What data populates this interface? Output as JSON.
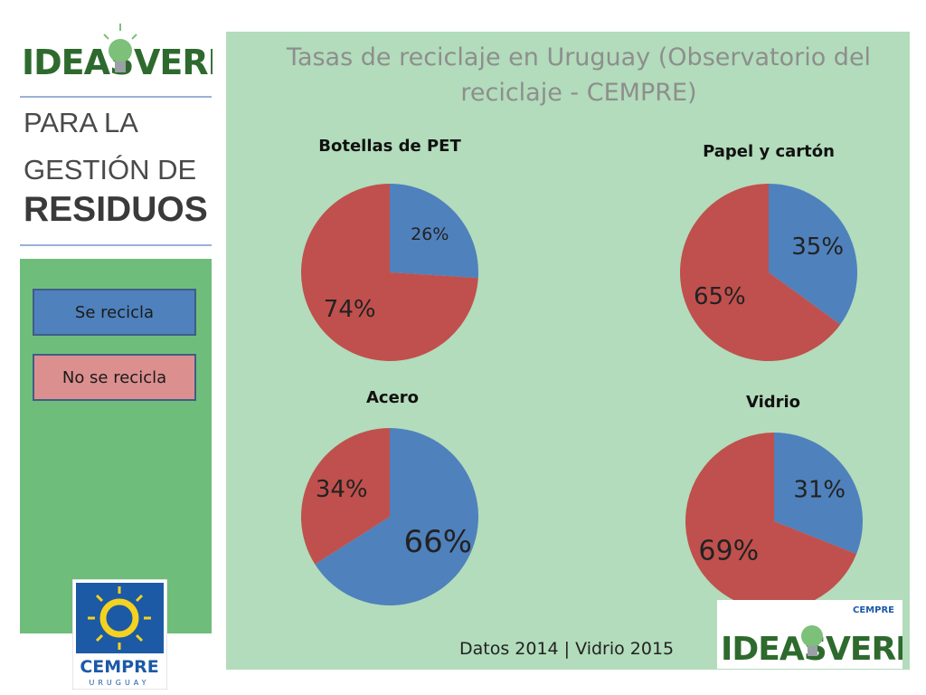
{
  "sidebar": {
    "logo_text": "IDEAS VERDES",
    "line1": "PARA LA",
    "line2": "GESTIÓN DE",
    "line3": "RESIDUOS",
    "legend": [
      {
        "label": "Se recicla",
        "color": "#4f81bd"
      },
      {
        "label": "No se recicla",
        "color": "#dc8f8f"
      }
    ],
    "cempre_logo_text": "CEMPRE",
    "cempre_logo_sub": "URUGUAY"
  },
  "main": {
    "title": "Tasas de reciclaje en Uruguay (Observatorio del reciclaje - CEMPRE)",
    "footer": "Datos 2014 | Vidrio 2015",
    "logo_text": "IDEAS VERDES",
    "logo_badge": "CEMPRE"
  },
  "colors": {
    "recicla": "#4f81bd",
    "no_recicla": "#c0504d",
    "panel": "#b2dcbb",
    "sidebar": "#6fbd7b"
  },
  "chart_data": [
    {
      "type": "pie",
      "title": "Botellas de PET",
      "categories": [
        "Se recicla",
        "No se recicla"
      ],
      "values": [
        26,
        74
      ],
      "labels": [
        "26%",
        "74%"
      ]
    },
    {
      "type": "pie",
      "title": "Papel y cartón",
      "categories": [
        "Se recicla",
        "No se recicla"
      ],
      "values": [
        35,
        65
      ],
      "labels": [
        "35%",
        "65%"
      ]
    },
    {
      "type": "pie",
      "title": "Acero",
      "categories": [
        "Se recicla",
        "No se recicla"
      ],
      "values": [
        66,
        34
      ],
      "labels": [
        "66%",
        "34%"
      ]
    },
    {
      "type": "pie",
      "title": "Vidrio",
      "categories": [
        "Se recicla",
        "No se recicla"
      ],
      "values": [
        31,
        69
      ],
      "labels": [
        "31%",
        "69%"
      ]
    }
  ]
}
